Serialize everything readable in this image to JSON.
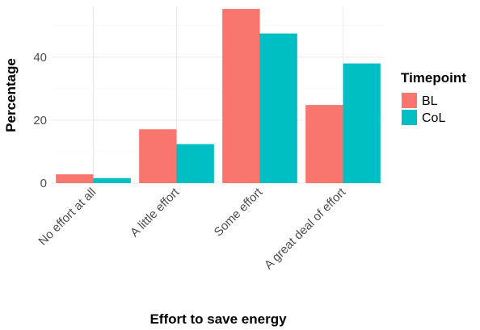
{
  "chart_data": {
    "type": "bar",
    "xlabel": "Effort to save energy",
    "ylabel": "Percentage",
    "categories": [
      "No effort at all",
      "A little effort",
      "Some effort",
      "A great deal of effort"
    ],
    "series": [
      {
        "name": "BL",
        "color": "#F8766D",
        "values": [
          2.8,
          17.1,
          55.3,
          24.8
        ]
      },
      {
        "name": "CoL",
        "color": "#00BFC4",
        "values": [
          1.6,
          12.4,
          47.5,
          38.0
        ]
      }
    ],
    "yticks": [
      0,
      20,
      40
    ],
    "ylim": [
      0,
      55.3
    ],
    "grid": true,
    "legend": {
      "title": "Timepoint",
      "placement": "right"
    }
  }
}
